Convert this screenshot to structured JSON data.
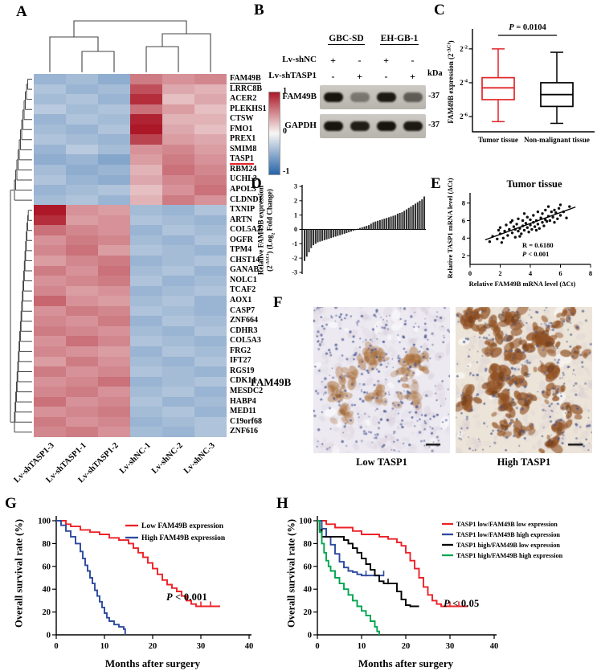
{
  "panel_a": {
    "label": "A",
    "genes": [
      "FAM49B",
      "LRRC8B",
      "ACER2",
      "PLEKHS1",
      "CTSW",
      "FMO1",
      "PREX1",
      "SMIM8",
      "TASP1",
      "RBM24",
      "UCHL3",
      "APOL3",
      "CLDND1",
      "TXNIP",
      "ARTN",
      "COL5A2",
      "OGFR",
      "TPM4",
      "CHST14",
      "GANAB",
      "NOLC1",
      "TCAF2",
      "AOX1",
      "CASP7",
      "ZNF664",
      "CDHR3",
      "COL5A3",
      "FRG2",
      "IFT27",
      "RGS19",
      "CDK14",
      "MESDC2",
      "HABP4",
      "MED11",
      "C19orf68",
      "ZNF616"
    ],
    "underline_black": "FAM49B",
    "underline_red": "TASP1",
    "columns": [
      "Lv-shTASP1-3",
      "Lv-shTASP1-1",
      "Lv-shTASP1-2",
      "Lv-shNC-1",
      "Lv-shNC-2",
      "Lv-shNC-3"
    ],
    "colorbar_ticks": [
      "1",
      "0",
      "-1"
    ],
    "colors": {
      "high": "#ac1828",
      "low": "#2664aa",
      "mid": "#f8f6f4"
    },
    "matrix": [
      [
        -0.9,
        -0.8,
        -1.0,
        1.1,
        0.9,
        1.0
      ],
      [
        -0.7,
        -0.9,
        -0.8,
        1.5,
        0.7,
        0.6
      ],
      [
        -0.8,
        -0.7,
        -0.9,
        1.8,
        0.5,
        0.7
      ],
      [
        -0.6,
        -0.8,
        -0.7,
        1.2,
        0.8,
        0.5
      ],
      [
        -0.9,
        -0.7,
        -0.8,
        1.9,
        0.6,
        0.6
      ],
      [
        -0.8,
        -0.9,
        -0.7,
        2.0,
        0.7,
        0.5
      ],
      [
        -0.7,
        -0.8,
        -0.9,
        1.6,
        0.8,
        0.7
      ],
      [
        -0.9,
        -0.6,
        -0.8,
        0.9,
        1.0,
        0.8
      ],
      [
        -1.0,
        -0.9,
        -1.1,
        0.8,
        1.1,
        0.9
      ],
      [
        -0.8,
        -1.0,
        -0.9,
        0.6,
        1.2,
        1.0
      ],
      [
        -0.7,
        -0.9,
        -1.0,
        0.7,
        1.0,
        1.1
      ],
      [
        -0.9,
        -0.8,
        -0.7,
        0.5,
        0.9,
        1.2
      ],
      [
        -0.8,
        -0.7,
        -0.9,
        0.6,
        1.1,
        0.9
      ],
      [
        2.0,
        0.9,
        0.8,
        -0.8,
        -0.9,
        -0.7
      ],
      [
        1.8,
        0.8,
        0.9,
        -0.7,
        -0.8,
        -0.9
      ],
      [
        1.2,
        1.0,
        0.9,
        -0.9,
        -0.7,
        -0.8
      ],
      [
        0.9,
        1.1,
        1.0,
        -0.8,
        -0.9,
        -0.7
      ],
      [
        1.0,
        1.2,
        0.8,
        -0.7,
        -0.8,
        -0.9
      ],
      [
        0.8,
        1.0,
        1.1,
        -0.9,
        -0.8,
        -0.7
      ],
      [
        1.1,
        0.9,
        1.2,
        -0.8,
        -0.7,
        -0.9
      ],
      [
        0.9,
        1.0,
        1.1,
        -0.7,
        -0.9,
        -0.8
      ],
      [
        1.0,
        0.8,
        0.9,
        -0.9,
        -0.8,
        -0.7
      ],
      [
        1.3,
        0.9,
        0.8,
        -0.8,
        -0.7,
        -0.9
      ],
      [
        0.9,
        1.1,
        1.0,
        -0.7,
        -0.8,
        -0.9
      ],
      [
        1.0,
        0.9,
        1.1,
        -0.9,
        -0.7,
        -0.8
      ],
      [
        1.1,
        1.0,
        0.9,
        -0.8,
        -0.9,
        -0.7
      ],
      [
        0.9,
        1.2,
        1.0,
        -0.7,
        -0.8,
        -0.9
      ],
      [
        1.0,
        0.9,
        0.8,
        -0.9,
        -0.7,
        -0.8
      ],
      [
        0.8,
        1.1,
        0.9,
        -0.8,
        -0.9,
        -0.7
      ],
      [
        1.1,
        0.9,
        1.0,
        -0.7,
        -0.8,
        -0.9
      ],
      [
        0.9,
        1.0,
        1.2,
        -0.9,
        -0.8,
        -0.7
      ],
      [
        1.0,
        1.1,
        0.9,
        -0.8,
        -0.7,
        -0.9
      ],
      [
        1.2,
        0.9,
        1.0,
        -0.7,
        -0.9,
        -0.8
      ],
      [
        0.9,
        1.0,
        1.1,
        -0.8,
        -0.7,
        -0.9
      ],
      [
        1.1,
        0.9,
        1.0,
        -0.9,
        -0.8,
        -0.7
      ],
      [
        1.0,
        1.1,
        0.9,
        -0.8,
        -0.9,
        -0.7
      ]
    ]
  },
  "panel_b": {
    "label": "B",
    "cell_lines": [
      "GBC-SD",
      "EH-GB-1"
    ],
    "rows": [
      {
        "label": "Lv-shNC",
        "signs": [
          "+",
          "-",
          "+",
          "-"
        ]
      },
      {
        "label": "Lv-shTASP1",
        "signs": [
          "-",
          "+",
          "-",
          "+"
        ]
      }
    ],
    "kda_label": "kDa",
    "blots": [
      {
        "label": "FAM49B",
        "mw": "-37",
        "bands": [
          0.95,
          0.4,
          0.92,
          0.55
        ]
      },
      {
        "label": "GAPDH",
        "mw": "-37",
        "bands": [
          0.95,
          0.9,
          0.95,
          0.92
        ]
      }
    ]
  },
  "panel_c": {
    "label": "C",
    "p_parts": [
      {
        "t": "P",
        "i": true
      },
      {
        "t": " = 0.0104"
      }
    ],
    "ylabel_parts": [
      {
        "t": "FAM49B expression (2"
      },
      {
        "t": "-ΔCt",
        "sup": true
      },
      {
        "t": ")"
      }
    ],
    "yticks": [
      {
        "base": "2",
        "sup": "-2",
        "v": -2
      },
      {
        "base": "2",
        "sup": "-4",
        "v": -4
      },
      {
        "base": "2",
        "sup": "-6",
        "v": -6
      }
    ],
    "groups": [
      {
        "name": "Tumor tissue",
        "color": "#e12729",
        "whisker_high": -2.0,
        "q3": -3.7,
        "median": -4.3,
        "q1": -5.0,
        "whisker_low": -6.3
      },
      {
        "name": "Non-malignant tissue",
        "color": "#000000",
        "whisker_high": -2.2,
        "q3": -4.0,
        "median": -4.7,
        "q1": -5.4,
        "whisker_low": -6.4
      }
    ]
  },
  "panel_d": {
    "label": "D",
    "ylabel_line1": "Relative FAM49B expression",
    "ylabel_line2": [
      {
        "t": "(2"
      },
      {
        "t": "-ΔΔCt",
        "sup": true
      },
      {
        "t": ") (Log"
      },
      {
        "t": "2",
        "sub": true
      },
      {
        "t": " Fold Change)"
      }
    ],
    "yticks": [
      -3,
      -2,
      -1,
      0,
      1,
      2,
      3
    ],
    "values": [
      -2.2,
      -1.9,
      -1.6,
      -1.3,
      -1.1,
      -1.0,
      -0.9,
      -0.85,
      -0.8,
      -0.75,
      -0.7,
      -0.65,
      -0.6,
      -0.55,
      -0.5,
      -0.45,
      -0.4,
      -0.35,
      -0.3,
      -0.25,
      -0.2,
      -0.15,
      -0.1,
      -0.05,
      0.05,
      0.1,
      0.15,
      0.2,
      0.25,
      0.3,
      0.4,
      0.5,
      0.55,
      0.6,
      0.65,
      0.7,
      0.75,
      0.8,
      0.85,
      0.9,
      0.95,
      1.0,
      1.1,
      1.15,
      1.2,
      1.3,
      1.4,
      1.5,
      1.6,
      1.7,
      1.8,
      1.9,
      2.0,
      2.1,
      2.3
    ]
  },
  "panel_e": {
    "label": "E",
    "title": "Tumor tissue",
    "xlabel": "Relative FAM49B mRNA level (ΔCt)",
    "ylabel": "Relative TASP1 mRNA level (ΔCt)",
    "xticks": [
      0,
      2,
      4,
      6,
      8
    ],
    "yticks": [
      2,
      4,
      6,
      8
    ],
    "r_text": "R = 0.6180",
    "p_parts": [
      {
        "t": "P",
        "i": true
      },
      {
        "t": " < 0.001"
      }
    ],
    "fit_line": {
      "x1": 1.0,
      "y1": 3.8,
      "x2": 7.0,
      "y2": 7.55
    },
    "points": [
      [
        1.3,
        3.6
      ],
      [
        1.5,
        4.2
      ],
      [
        1.8,
        3.9
      ],
      [
        1.9,
        4.9
      ],
      [
        2.0,
        4.5
      ],
      [
        2.0,
        5.2
      ],
      [
        2.1,
        3.5
      ],
      [
        2.2,
        4.0
      ],
      [
        2.3,
        4.8
      ],
      [
        2.4,
        5.5
      ],
      [
        2.5,
        4.3
      ],
      [
        2.6,
        5.0
      ],
      [
        2.7,
        5.8
      ],
      [
        2.8,
        4.6
      ],
      [
        2.8,
        6.0
      ],
      [
        2.9,
        5.3
      ],
      [
        3.0,
        4.1
      ],
      [
        3.0,
        5.0
      ],
      [
        3.1,
        5.6
      ],
      [
        3.2,
        4.8
      ],
      [
        3.2,
        6.2
      ],
      [
        3.3,
        4.2
      ],
      [
        3.3,
        5.1
      ],
      [
        3.4,
        4.5
      ],
      [
        3.5,
        5.4
      ],
      [
        3.5,
        6.0
      ],
      [
        3.6,
        4.9
      ],
      [
        3.6,
        6.8
      ],
      [
        3.7,
        5.7
      ],
      [
        3.8,
        5.2
      ],
      [
        3.8,
        6.4
      ],
      [
        3.9,
        4.7
      ],
      [
        4.0,
        5.5
      ],
      [
        4.0,
        6.1
      ],
      [
        4.1,
        5.0
      ],
      [
        4.2,
        5.8
      ],
      [
        4.2,
        6.6
      ],
      [
        4.3,
        5.3
      ],
      [
        4.4,
        4.9
      ],
      [
        4.4,
        6.0
      ],
      [
        4.5,
        5.6
      ],
      [
        4.5,
        7.0
      ],
      [
        4.6,
        5.1
      ],
      [
        4.7,
        6.3
      ],
      [
        4.8,
        5.8
      ],
      [
        4.8,
        6.8
      ],
      [
        4.9,
        5.4
      ],
      [
        5.0,
        6.1
      ],
      [
        5.0,
        7.2
      ],
      [
        5.1,
        5.9
      ],
      [
        5.2,
        6.5
      ],
      [
        5.2,
        7.6
      ],
      [
        5.3,
        6.0
      ],
      [
        5.4,
        7.0
      ],
      [
        5.5,
        6.4
      ],
      [
        5.6,
        5.8
      ],
      [
        5.6,
        7.2
      ],
      [
        5.7,
        6.9
      ],
      [
        5.8,
        6.2
      ],
      [
        5.9,
        7.4
      ],
      [
        6.0,
        6.6
      ],
      [
        6.0,
        7.8
      ],
      [
        6.2,
        7.0
      ],
      [
        6.4,
        6.3
      ],
      [
        6.6,
        7.6
      ]
    ]
  },
  "panel_f": {
    "label": "F",
    "row_label": "FAM49B",
    "captions": [
      "Low TASP1",
      "High TASP1"
    ]
  },
  "panel_g": {
    "label": "G",
    "ylabel": "Overall survival rate (%)",
    "xlabel": "Months after surgery",
    "p_parts": [
      {
        "t": "P",
        "i": true
      },
      {
        "t": " < 0.001"
      }
    ],
    "xticks": [
      0,
      10,
      20,
      30,
      40
    ],
    "yticks": [
      0,
      20,
      40,
      60,
      80,
      100
    ],
    "series": [
      {
        "name": "Low FAM49B expression",
        "color": "#ec2227",
        "steps": [
          [
            0,
            100
          ],
          [
            2,
            97
          ],
          [
            3,
            95
          ],
          [
            5,
            92
          ],
          [
            7,
            90
          ],
          [
            9,
            88
          ],
          [
            11,
            85
          ],
          [
            13,
            83
          ],
          [
            15,
            80
          ],
          [
            16,
            76
          ],
          [
            17,
            72
          ],
          [
            18,
            68
          ],
          [
            19,
            63
          ],
          [
            20,
            58
          ],
          [
            21,
            53
          ],
          [
            22,
            48
          ],
          [
            23,
            44
          ],
          [
            24,
            41
          ],
          [
            25,
            38
          ],
          [
            26,
            34
          ],
          [
            27,
            30
          ],
          [
            28,
            27
          ],
          [
            29,
            25
          ],
          [
            33,
            25
          ],
          [
            34,
            25
          ]
        ],
        "censors": [
          [
            30,
            25
          ],
          [
            32,
            25
          ]
        ]
      },
      {
        "name": "High FAM49B expression",
        "color": "#2c4a9e",
        "steps": [
          [
            0,
            100
          ],
          [
            1,
            96
          ],
          [
            2,
            91
          ],
          [
            3,
            86
          ],
          [
            4,
            80
          ],
          [
            5,
            73
          ],
          [
            5.5,
            67
          ],
          [
            6,
            61
          ],
          [
            6.5,
            56
          ],
          [
            7,
            50
          ],
          [
            7.5,
            45
          ],
          [
            8,
            39
          ],
          [
            8.5,
            34
          ],
          [
            9,
            29
          ],
          [
            9.5,
            24
          ],
          [
            10,
            19
          ],
          [
            10.5,
            15
          ],
          [
            11,
            12
          ],
          [
            12,
            9
          ],
          [
            13,
            7
          ],
          [
            14,
            5
          ],
          [
            14.3,
            0
          ]
        ],
        "censors": []
      }
    ]
  },
  "panel_h": {
    "label": "H",
    "ylabel": "Overall survival rate (%)",
    "xlabel": "Months after surgery",
    "p_parts": [
      {
        "t": "P",
        "i": true
      },
      {
        "t": " < 0.05"
      }
    ],
    "xticks": [
      0,
      10,
      20,
      30,
      40
    ],
    "yticks": [
      0,
      20,
      40,
      60,
      80,
      100
    ],
    "series": [
      {
        "name": "TASP1 low/FAM49B low expression",
        "color": "#ec2227",
        "steps": [
          [
            0,
            100
          ],
          [
            2,
            97
          ],
          [
            4,
            94
          ],
          [
            6,
            94
          ],
          [
            8,
            91
          ],
          [
            10,
            88
          ],
          [
            12,
            88
          ],
          [
            14,
            86
          ],
          [
            16,
            84
          ],
          [
            18,
            81
          ],
          [
            19,
            78
          ],
          [
            20,
            72
          ],
          [
            21,
            65
          ],
          [
            22,
            58
          ],
          [
            23,
            50
          ],
          [
            24,
            42
          ],
          [
            25,
            35
          ],
          [
            26,
            30
          ],
          [
            27,
            27
          ],
          [
            28,
            25
          ],
          [
            33,
            25
          ],
          [
            34,
            25
          ]
        ],
        "censors": [
          [
            30,
            25
          ],
          [
            32,
            25
          ]
        ]
      },
      {
        "name": "TASP1 low/FAM49B high expression",
        "color": "#2c4a9e",
        "steps": [
          [
            0,
            100
          ],
          [
            1,
            93
          ],
          [
            2,
            86
          ],
          [
            3,
            79
          ],
          [
            4,
            71
          ],
          [
            5,
            64
          ],
          [
            6,
            59
          ],
          [
            7,
            56
          ],
          [
            8,
            55
          ],
          [
            9,
            53
          ],
          [
            10,
            52
          ],
          [
            12,
            52
          ],
          [
            14,
            52
          ],
          [
            15,
            52
          ]
        ],
        "censors": [
          [
            11,
            52
          ],
          [
            13,
            52
          ],
          [
            15,
            52
          ]
        ]
      },
      {
        "name": "TASP1 high/FAM49B low expression",
        "color": "#000000",
        "steps": [
          [
            0,
            100
          ],
          [
            0.5,
            92
          ],
          [
            1,
            86
          ],
          [
            3,
            86
          ],
          [
            5,
            86
          ],
          [
            6,
            83
          ],
          [
            7,
            80
          ],
          [
            8,
            76
          ],
          [
            9,
            72
          ],
          [
            10,
            67
          ],
          [
            11,
            62
          ],
          [
            12,
            57
          ],
          [
            13,
            52
          ],
          [
            14,
            47
          ],
          [
            15,
            45
          ],
          [
            17,
            45
          ],
          [
            18,
            38
          ],
          [
            19,
            31
          ],
          [
            20,
            26
          ],
          [
            21,
            25
          ],
          [
            23,
            25
          ]
        ],
        "censors": [
          [
            16,
            45
          ]
        ]
      },
      {
        "name": "TASP1 high/FAM49B high expression",
        "color": "#00a550",
        "steps": [
          [
            0,
            100
          ],
          [
            0.5,
            90
          ],
          [
            1,
            80
          ],
          [
            1.5,
            72
          ],
          [
            2,
            65
          ],
          [
            2.5,
            60
          ],
          [
            3,
            56
          ],
          [
            4,
            50
          ],
          [
            5,
            45
          ],
          [
            6,
            40
          ],
          [
            7,
            35
          ],
          [
            8,
            30
          ],
          [
            9,
            25
          ],
          [
            10,
            21
          ],
          [
            11,
            17
          ],
          [
            12,
            12
          ],
          [
            13,
            7
          ],
          [
            13.5,
            3
          ],
          [
            14,
            0
          ]
        ],
        "censors": []
      }
    ]
  }
}
